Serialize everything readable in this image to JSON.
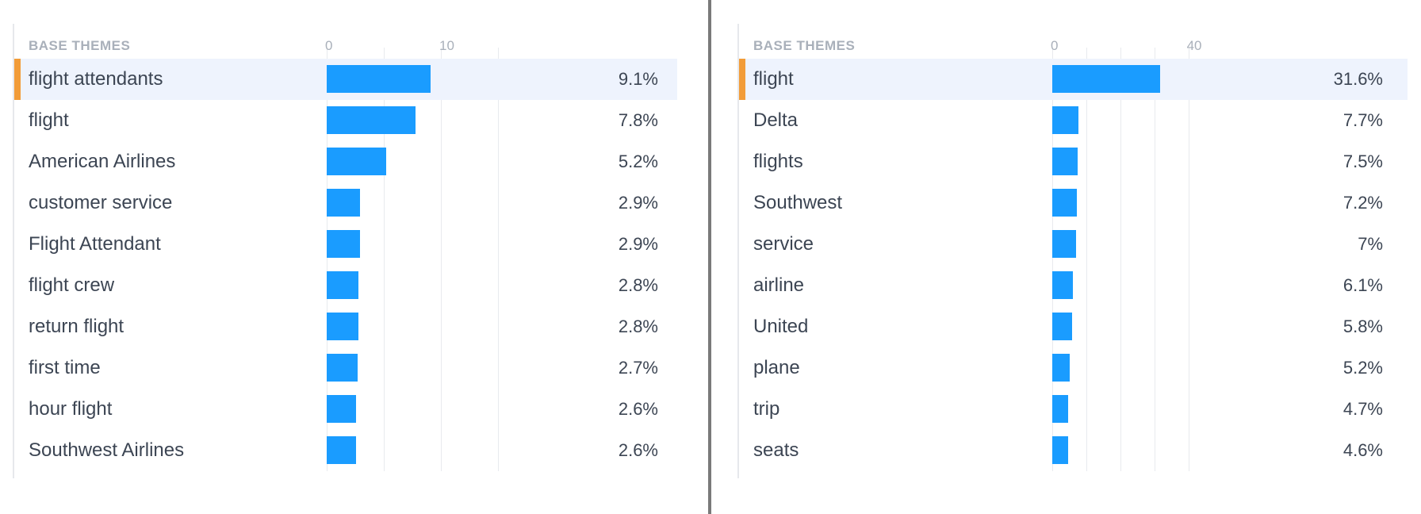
{
  "chart_data": [
    {
      "type": "bar",
      "orientation": "horizontal",
      "header": "BASE THEMES",
      "ticks": [
        0,
        10
      ],
      "xlim": [
        0,
        30
      ],
      "gridlines": [
        0,
        5,
        10,
        15
      ],
      "selected_index": 0,
      "categories": [
        "flight attendants",
        "flight",
        "American Airlines",
        "customer service",
        "Flight Attendant",
        "flight crew",
        "return flight",
        "first time",
        "hour flight",
        "Southwest Airlines"
      ],
      "values": [
        9.1,
        7.8,
        5.2,
        2.9,
        2.9,
        2.8,
        2.8,
        2.7,
        2.6,
        2.6
      ],
      "value_labels": [
        "9.1%",
        "7.8%",
        "5.2%",
        "2.9%",
        "2.9%",
        "2.8%",
        "2.8%",
        "2.7%",
        "2.6%",
        "2.6%"
      ]
    },
    {
      "type": "bar",
      "orientation": "horizontal",
      "header": "BASE THEMES",
      "ticks": [
        0,
        40
      ],
      "xlim": [
        0,
        100
      ],
      "gridlines": [
        0,
        10,
        20,
        30,
        40
      ],
      "selected_index": 0,
      "categories": [
        "flight",
        "Delta",
        "flights",
        "Southwest",
        "service",
        "airline",
        "United",
        "plane",
        "trip",
        "seats"
      ],
      "values": [
        31.6,
        7.7,
        7.5,
        7.2,
        7.0,
        6.1,
        5.8,
        5.2,
        4.7,
        4.6
      ],
      "value_labels": [
        "31.6%",
        "7.7%",
        "7.5%",
        "7.2%",
        "7%",
        "6.1%",
        "5.8%",
        "5.2%",
        "4.7%",
        "4.6%"
      ]
    }
  ],
  "colors": {
    "bar": "#1a9cff",
    "selected_row": "#eef3fd",
    "selected_marker": "#f29c38",
    "text": "#3c4553",
    "header": "#a9b0ba"
  }
}
